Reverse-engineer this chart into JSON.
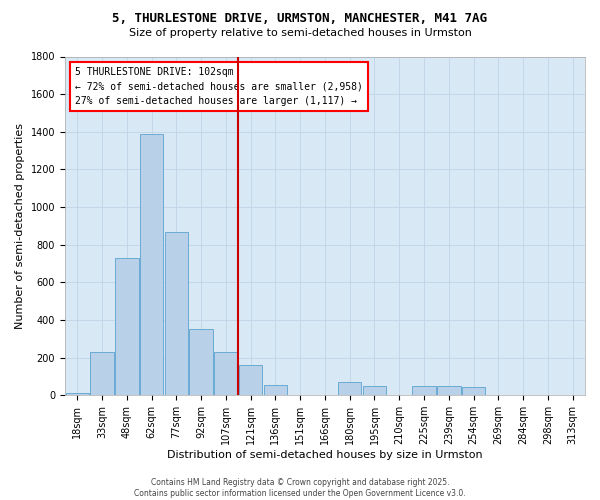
{
  "title_line1": "5, THURLESTONE DRIVE, URMSTON, MANCHESTER, M41 7AG",
  "title_line2": "Size of property relative to semi-detached houses in Urmston",
  "xlabel": "Distribution of semi-detached houses by size in Urmston",
  "ylabel": "Number of semi-detached properties",
  "footer_line1": "Contains HM Land Registry data © Crown copyright and database right 2025.",
  "footer_line2": "Contains public sector information licensed under the Open Government Licence v3.0.",
  "annotation_title": "5 THURLESTONE DRIVE: 102sqm",
  "annotation_line1": "← 72% of semi-detached houses are smaller (2,958)",
  "annotation_line2": "27% of semi-detached houses are larger (1,117) →",
  "red_line_x": 6.5,
  "bar_color": "#b8d0e8",
  "bar_edge_color": "#6aaad4",
  "red_line_color": "#cc0000",
  "grid_color": "#c0d4e8",
  "background_color": "#d8e8f4",
  "ylim": [
    0,
    1800
  ],
  "yticks": [
    0,
    200,
    400,
    600,
    800,
    1000,
    1200,
    1400,
    1600,
    1800
  ],
  "bin_labels": [
    "18sqm",
    "33sqm",
    "48sqm",
    "62sqm",
    "77sqm",
    "92sqm",
    "107sqm",
    "121sqm",
    "136sqm",
    "151sqm",
    "166sqm",
    "180sqm",
    "195sqm",
    "210sqm",
    "225sqm",
    "239sqm",
    "254sqm",
    "269sqm",
    "284sqm",
    "298sqm",
    "313sqm"
  ],
  "counts": [
    10,
    230,
    730,
    1390,
    870,
    350,
    230,
    160,
    55,
    0,
    0,
    70,
    50,
    0,
    50,
    50,
    45,
    0,
    0,
    0,
    0
  ],
  "title_fontsize": 9,
  "subtitle_fontsize": 8,
  "ylabel_fontsize": 8,
  "xlabel_fontsize": 8,
  "tick_fontsize": 7,
  "annotation_fontsize": 7,
  "footer_fontsize": 5.5
}
